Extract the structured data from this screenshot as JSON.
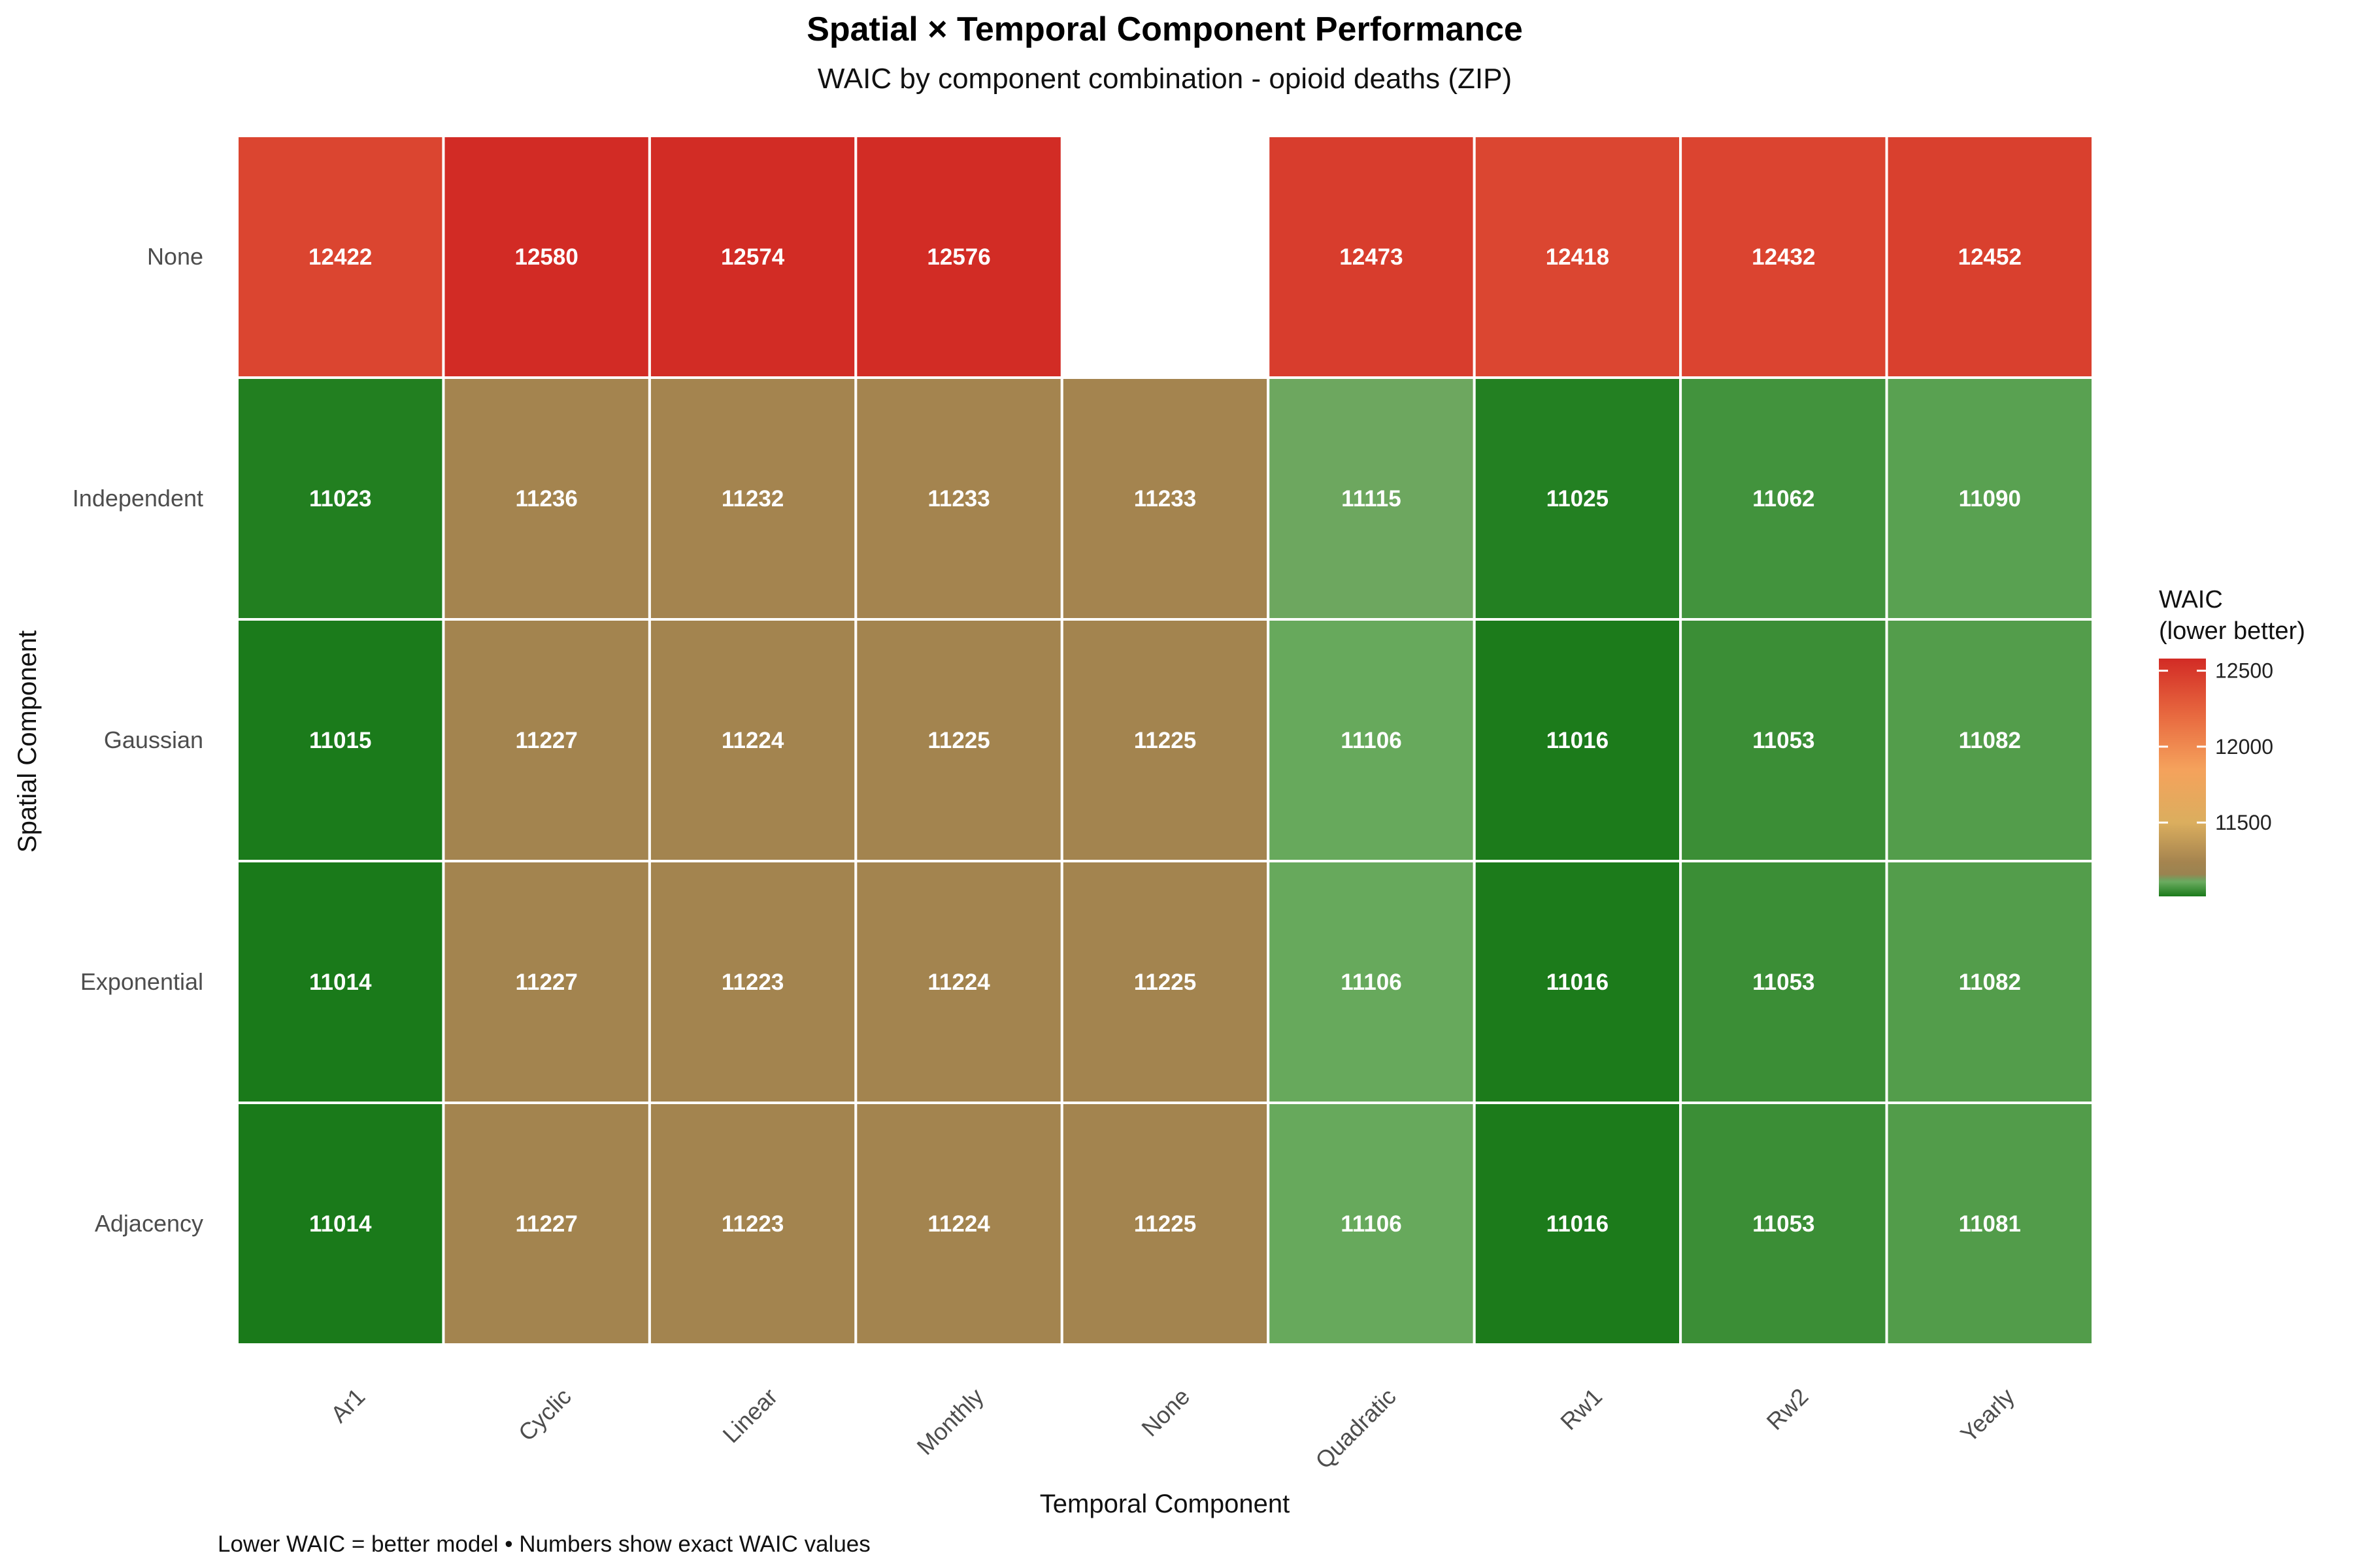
{
  "chart_data": {
    "type": "heatmap",
    "title": "Spatial × Temporal Component Performance",
    "subtitle": "WAIC by component combination - opioid deaths (ZIP)",
    "xlabel": "Temporal Component",
    "ylabel": "Spatial Component",
    "caption": "Lower WAIC = better model • Numbers show exact WAIC values",
    "x_categories": [
      "Ar1",
      "Cyclic",
      "Linear",
      "Monthly",
      "None",
      "Quadratic",
      "Rw1",
      "Rw2",
      "Yearly"
    ],
    "y_categories": [
      "None",
      "Independent",
      "Gaussian",
      "Exponential",
      "Adjacency"
    ],
    "values": [
      [
        12422,
        12580,
        12574,
        12576,
        null,
        12473,
        12418,
        12432,
        12452
      ],
      [
        11023,
        11236,
        11232,
        11233,
        11233,
        11115,
        11025,
        11062,
        11090
      ],
      [
        11015,
        11227,
        11224,
        11225,
        11225,
        11106,
        11016,
        11053,
        11082
      ],
      [
        11014,
        11227,
        11223,
        11224,
        11225,
        11106,
        11016,
        11053,
        11082
      ],
      [
        11014,
        11227,
        11223,
        11224,
        11225,
        11106,
        11016,
        11053,
        11081
      ]
    ],
    "legend": {
      "title_line1": "WAIC",
      "title_line2": "(lower better)",
      "ticks": [
        12500,
        12000,
        11500
      ],
      "range": [
        11014,
        12580
      ],
      "position": "right"
    },
    "color_scale": [
      {
        "value": 11014,
        "color": "#1a7a1a"
      },
      {
        "value": 11110,
        "color": "#6aab5f"
      },
      {
        "value": 11125,
        "color": "#72a05e"
      },
      {
        "value": 11160,
        "color": "#9a8350"
      },
      {
        "value": 11240,
        "color": "#a5844f"
      },
      {
        "value": 11500,
        "color": "#dbae5e"
      },
      {
        "value": 11850,
        "color": "#f5a25c"
      },
      {
        "value": 12200,
        "color": "#e86a40"
      },
      {
        "value": 12580,
        "color": "#d22b25"
      }
    ],
    "grid": false
  }
}
